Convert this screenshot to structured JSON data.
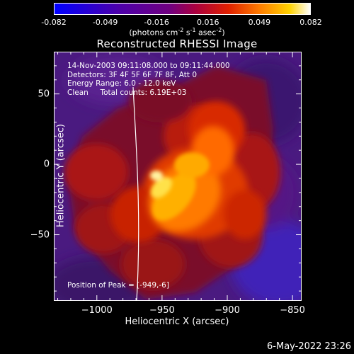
{
  "colorbar": {
    "ticks": [
      "-0.082",
      "-0.049",
      "-0.016",
      "0.016",
      "0.049",
      "0.082"
    ],
    "units_html": "(photons cm<sup>-2</sup> s<sup>-1</sup> asec<sup>-2</sup>)"
  },
  "chart_data": {
    "type": "heatmap",
    "title": "Reconstructed RHESSI Image",
    "xlabel": "Heliocentric X (arcsec)",
    "ylabel": "Heliocentric Y (arcsec)",
    "xlim": [
      -1033,
      -843
    ],
    "ylim": [
      -97,
      80
    ],
    "x_ticks": [
      -1000,
      -950,
      -900,
      -850
    ],
    "x_tick_labels": [
      "−1000",
      "−950",
      "−900",
      "−850"
    ],
    "y_ticks": [
      50,
      0,
      -50
    ],
    "y_tick_labels": [
      "50",
      "0",
      "−50"
    ],
    "color_range": [
      -0.082,
      0.082
    ],
    "annotations": {
      "time": "14-Nov-2003 09:11:08.000 to 09:11:44.000",
      "detectors": "Detectors: 3F 4F 5F 6F 7F 8F, Att 0",
      "energy": "Energy Range: 6.0 - 12.0 keV",
      "clean": "Clean     Total counts: 6.19E+03",
      "peak": "Position of Peak = [-949,-6]"
    },
    "peak_position": [
      -949,
      -6
    ],
    "limb_line": true
  },
  "footer": {
    "date": "6-May-2022 23:26"
  }
}
